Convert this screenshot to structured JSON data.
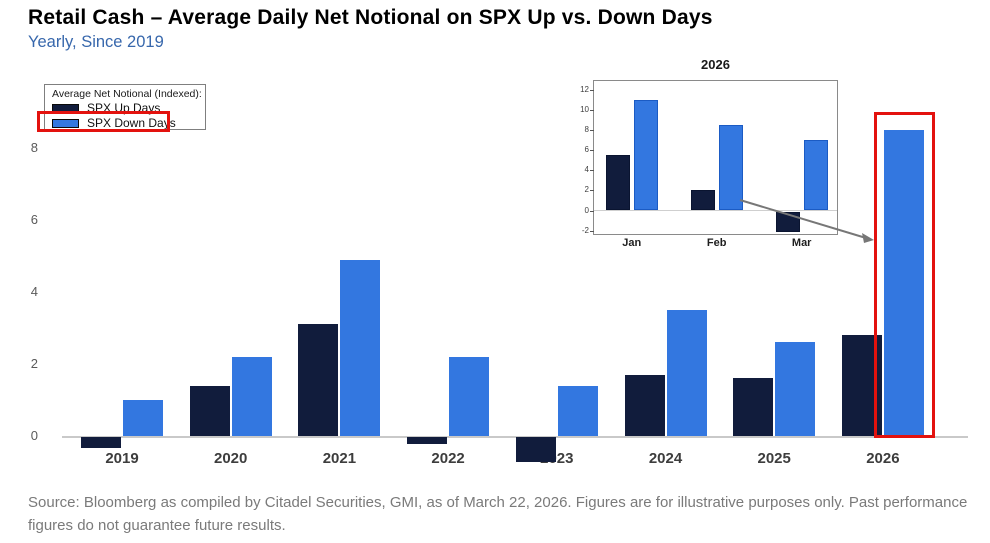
{
  "header": {
    "title": "Retail Cash – Average Daily Net Notional on SPX Up vs. Down Days",
    "subtitle": "Yearly, Since 2019"
  },
  "legend": {
    "title": "Average Net Notional (Indexed):",
    "items": [
      {
        "label": "SPX Up Days",
        "color": "#111c3c"
      },
      {
        "label": "SPX Down Days",
        "color": "#3377e0",
        "highlighted_by_red_box": true
      }
    ]
  },
  "chart_data": [
    {
      "type": "bar",
      "title": "",
      "subtitle": "Yearly, Since 2019",
      "categories": [
        "2019",
        "2020",
        "2021",
        "2022",
        "2023",
        "2024",
        "2025",
        "2026"
      ],
      "series": [
        {
          "name": "SPX Up Days",
          "color": "#111c3c",
          "values": [
            -0.3,
            1.4,
            3.1,
            -0.2,
            -0.7,
            1.7,
            1.6,
            2.8
          ]
        },
        {
          "name": "SPX Down Days",
          "color": "#3377e0",
          "values": [
            1.0,
            2.2,
            4.9,
            2.2,
            1.4,
            3.5,
            2.6,
            8.5
          ]
        }
      ],
      "xlabel": "",
      "ylabel": "",
      "yticks": [
        0,
        2,
        4,
        6,
        8
      ],
      "ylim": [
        -1,
        9
      ],
      "grid": false,
      "legend_position": "top-left",
      "annotation": "red rectangle highlighting the 2026 SPX Down Days bar"
    },
    {
      "type": "bar",
      "title": "2026",
      "categories": [
        "Jan",
        "Feb",
        "Mar"
      ],
      "series": [
        {
          "name": "SPX Up Days",
          "color": "#111c3c",
          "values": [
            5.5,
            2.0,
            -2.0
          ]
        },
        {
          "name": "SPX Down Days",
          "color": "#3377e0",
          "values": [
            11.0,
            8.5,
            7.0
          ]
        }
      ],
      "xlabel": "",
      "ylabel": "",
      "yticks": [
        -2,
        0,
        2,
        4,
        6,
        8,
        10,
        12
      ],
      "ylim": [
        -2.4,
        13
      ],
      "grid": false,
      "legend_position": "none",
      "annotation": "inset zoom of 2026 monthly data, connected by a line to the highlighted 2026 bar"
    }
  ],
  "footer": {
    "source": "Source: Bloomberg as compiled by Citadel Securities, GMI, as of March 22, 2026. Figures are for illustrative purposes only. Past performance figures do not guarantee future results."
  },
  "colors": {
    "up_days": "#111c3c",
    "down_days": "#3377e0",
    "subtitle_blue": "#3767ac",
    "annotation_red": "#e3120e",
    "source_gray": "#7a7a7a",
    "baseline_gray": "#c9c9c9"
  }
}
